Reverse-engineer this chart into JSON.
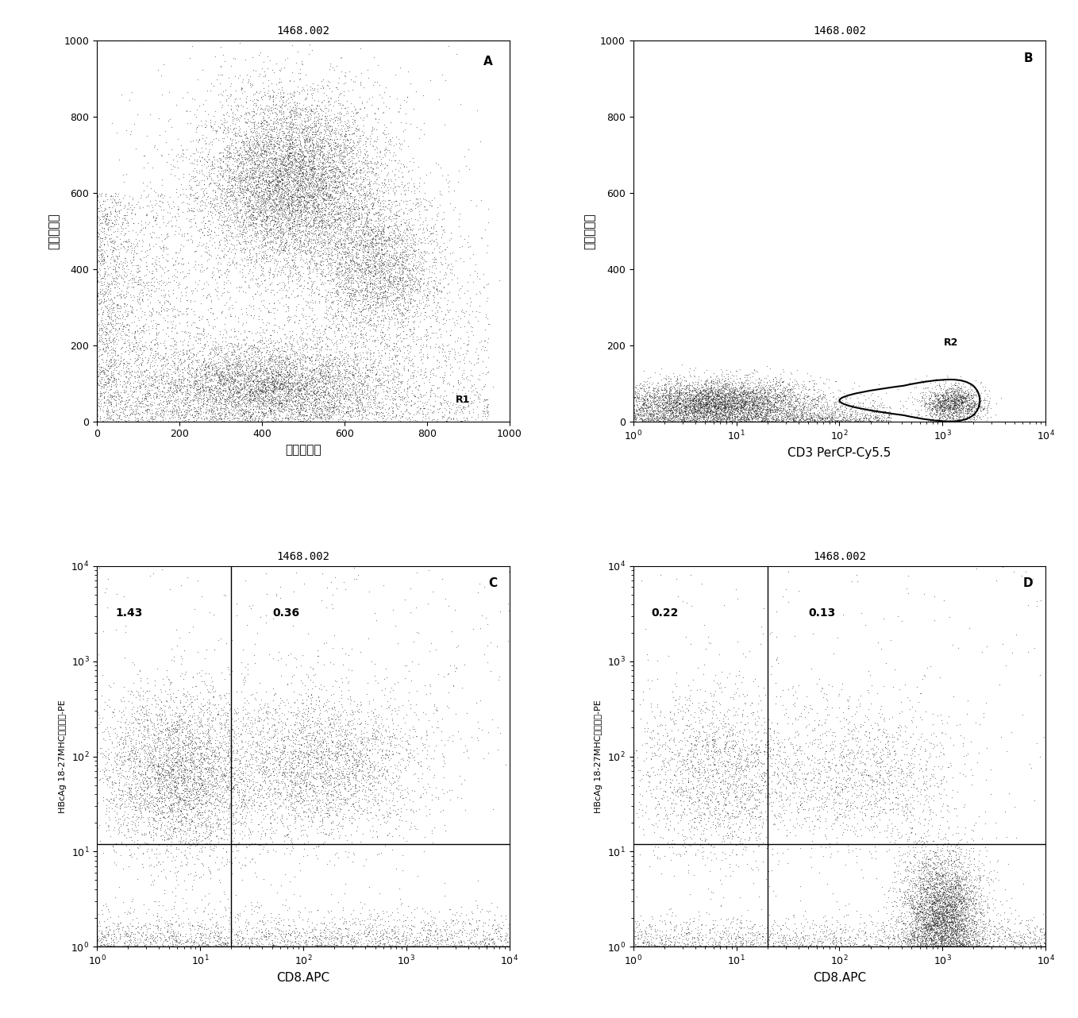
{
  "title": "1468.002",
  "panel_A": {
    "title": "1468.002",
    "label": "A",
    "xlabel": "前向散射光",
    "ylabel": "侧向散射光",
    "xlim": [
      0,
      1000
    ],
    "ylim": [
      0,
      1000
    ],
    "xticks": [
      0,
      200,
      400,
      600,
      800,
      1000
    ],
    "yticks": [
      0,
      200,
      400,
      600,
      800,
      1000
    ]
  },
  "panel_B": {
    "title": "1468.002",
    "label": "B",
    "xlabel": "CD3 PerCP-Cy5.5",
    "ylabel": "侧向散射光",
    "ylim": [
      0,
      1000
    ],
    "yticks": [
      0,
      200,
      400,
      600,
      800,
      1000
    ]
  },
  "panel_C": {
    "title": "1468.002",
    "label": "C",
    "xlabel": "CD8.APC",
    "ylabel": "HBcAg 18-27MHC肚五聚体-PE",
    "quad_UL": "1.43",
    "quad_UR": "0.36"
  },
  "panel_D": {
    "title": "1468.002",
    "label": "D",
    "xlabel": "CD8.APC",
    "ylabel": "HBcAg 18-27MHC肚五聚体-PE",
    "quad_UL": "0.22",
    "quad_UR": "0.13"
  },
  "bg_color": "#ffffff",
  "dot_color": "#111111",
  "dot_alpha": 0.5,
  "dot_size": 0.8
}
